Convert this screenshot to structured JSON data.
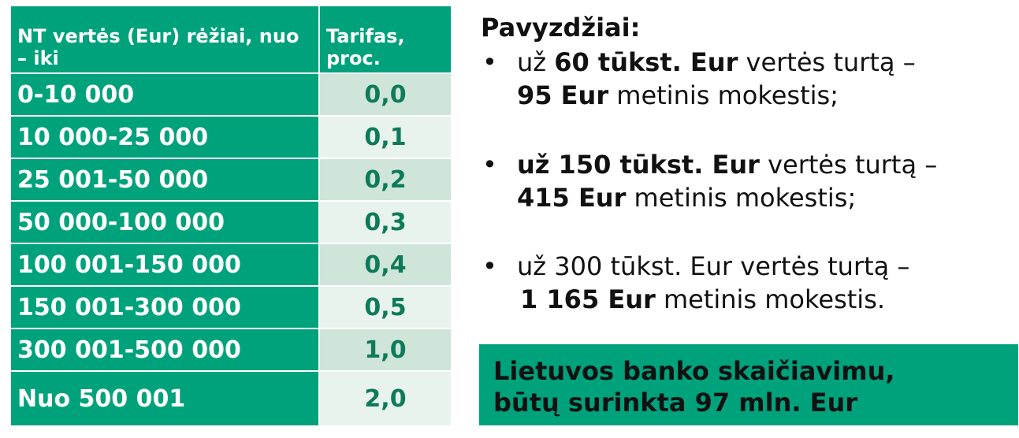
{
  "table": {
    "header": {
      "range_label": "NT vertės (Eur) rėžiai, nuo – iki",
      "rate_label": "Tarifas, proc."
    },
    "rows": [
      {
        "range": "0-10 000",
        "rate": "0,0"
      },
      {
        "range": "10 000-25 000",
        "rate": "0,1"
      },
      {
        "range": "25 001-50 000",
        "rate": "0,2"
      },
      {
        "range": "50 000-100 000",
        "rate": "0,3"
      },
      {
        "range": "100 001-150 000",
        "rate": "0,4"
      },
      {
        "range": "150 001-300 000",
        "rate": "0,5"
      },
      {
        "range": "300 001-500 000",
        "rate": "1,0"
      },
      {
        "range": "Nuo 500 001",
        "rate": "2,0"
      }
    ]
  },
  "examples": {
    "title": "Pavyzdžiai:",
    "bullet": "•",
    "items": [
      {
        "prefix": "už ",
        "value_bold": "60 tūkst. Eur",
        "value_rest": " vertės turtą –",
        "tax_bold": "95 Eur",
        "tax_rest": " metinis mokestis;"
      },
      {
        "prefix": "",
        "value_bold": "už 150 tūkst. Eur",
        "value_rest": " vertės turtą –",
        "tax_bold": "415 Eur",
        "tax_rest": " metinis mokestis;"
      },
      {
        "prefix": "",
        "value_bold": "",
        "value_rest": "už 300 tūkst. Eur vertės turtą –",
        "tax_bold": "1 165 Eur",
        "tax_rest": " metinis mokestis."
      }
    ]
  },
  "conclusion": {
    "line1": "Lietuvos banko skaičiavimu,",
    "line2": "būtų surinkta 97 mln. Eur"
  },
  "colors": {
    "accent_green": "#00a27c",
    "rate_text": "#0f7a5a",
    "rate_bg_dark": "#cfe5da",
    "rate_bg_light": "#e8f3ee"
  }
}
